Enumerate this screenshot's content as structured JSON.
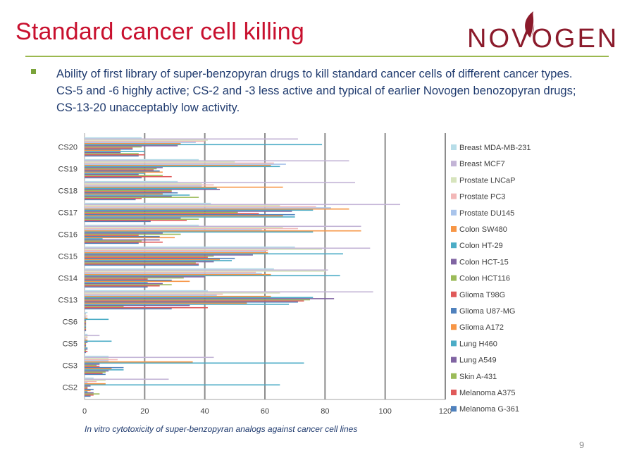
{
  "slide": {
    "title": "Standard cancer cell killing",
    "logo_text": "NOVOGEN",
    "bullet": "Ability of first library of super-benzopyran drugs to kill standard cancer cells of different cancer types. CS-5 and -6 highly active; CS-2 and -3 less active and typical of earlier Novogen benozopyran drugs; CS-13-20 unacceptably low activity.",
    "caption": "In vitro cytotoxicity of super-benzopyran analogs against cancer cell lines",
    "page_number": "9",
    "colors": {
      "title": "#c8102e",
      "rule": "#9bb84f",
      "text": "#1f3a6e",
      "logo": "#8b1a2b"
    }
  },
  "chart_data": {
    "type": "bar",
    "orientation": "horizontal",
    "categories": [
      "CS2",
      "CS3",
      "CS5",
      "CS6",
      "CS13",
      "CS14",
      "CS15",
      "CS16",
      "CS17",
      "CS18",
      "CS19",
      "CS20"
    ],
    "xlim": [
      0,
      120
    ],
    "xticks": [
      0,
      20,
      40,
      60,
      80,
      100,
      120
    ],
    "grid": true,
    "legend_position": "right",
    "series": [
      {
        "name": "Melanoma G-361",
        "color": "#4f81bd",
        "values": [
          2,
          7,
          0.5,
          0.5,
          29,
          21,
          38,
          18,
          22,
          17,
          19,
          18
        ]
      },
      {
        "name": "Melanoma A375",
        "color": "#e05a5a",
        "values": [
          3,
          6,
          1,
          0.5,
          41,
          25,
          38,
          26,
          34,
          19,
          29,
          20
        ]
      },
      {
        "name": "Skin A-431",
        "color": "#9bbb59",
        "values": [
          5,
          7,
          0.5,
          0.5,
          13,
          29,
          37,
          19,
          38,
          38,
          26,
          18
        ]
      },
      {
        "name": "Lung A549",
        "color": "#8064a2",
        "values": [
          3,
          8,
          1,
          0.5,
          35,
          26,
          43,
          25,
          32,
          29,
          18,
          12
        ]
      },
      {
        "name": "Lung H460",
        "color": "#4bacc6",
        "values": [
          1,
          13,
          1,
          0.5,
          68,
          21,
          49,
          6,
          70,
          35,
          20,
          20
        ]
      },
      {
        "name": "Glioma A172",
        "color": "#f79646",
        "values": [
          2,
          9,
          0.5,
          0.5,
          54,
          35,
          45,
          30,
          66,
          26,
          26,
          12
        ]
      },
      {
        "name": "Glioma U87-MG",
        "color": "#4f81bd",
        "values": [
          3,
          13,
          0.5,
          0.5,
          71,
          29,
          50,
          25,
          70,
          31,
          25,
          16
        ]
      },
      {
        "name": "Glioma T98G",
        "color": "#e05a5a",
        "values": [
          1,
          5,
          0.5,
          0.5,
          73,
          21,
          41,
          18,
          58,
          29,
          23,
          16
        ]
      },
      {
        "name": "Colon HCT116",
        "color": "#9bbb59",
        "values": [
          1,
          4,
          0.5,
          0.5,
          75,
          33,
          43,
          32,
          51,
          29,
          24,
          19
        ]
      },
      {
        "name": "Colon HCT-15",
        "color": "#8064a2",
        "values": [
          2,
          5,
          1,
          0.5,
          83,
          40,
          56,
          26,
          69,
          45,
          26,
          31
        ]
      },
      {
        "name": "Colon HT-29",
        "color": "#4bacc6",
        "values": [
          65,
          73,
          9,
          8,
          76,
          85,
          86,
          76,
          76,
          44,
          65,
          79
        ]
      },
      {
        "name": "Colon SW480",
        "color": "#f79646",
        "values": [
          7,
          36,
          1,
          1,
          62,
          62,
          61,
          92,
          88,
          66,
          62,
          32
        ]
      },
      {
        "name": "Prostate DU145",
        "color": "#a9c4eb",
        "values": [
          1,
          8,
          0.5,
          0.5,
          44,
          59,
          60,
          59,
          82,
          39,
          67,
          37
        ]
      },
      {
        "name": "Prostate PC3",
        "color": "#f2b7b7",
        "values": [
          4,
          11,
          1,
          1,
          46,
          57,
          61,
          71,
          77,
          43,
          63,
          40
        ]
      },
      {
        "name": "Prostate LNCaP",
        "color": "#d7e4bd",
        "values": [
          7,
          8,
          1,
          0.5,
          65,
          80,
          79,
          66,
          65,
          39,
          50,
          41
        ]
      },
      {
        "name": "Breast MCF7",
        "color": "#c3b4d6",
        "values": [
          28,
          43,
          5,
          0.5,
          96,
          81,
          95,
          92,
          105,
          90,
          88,
          71
        ]
      },
      {
        "name": "Breast MDA-MB-231",
        "color": "#b7dde8",
        "values": [
          3,
          8,
          1,
          1,
          41,
          63,
          70,
          38,
          42,
          31,
          38,
          19
        ]
      }
    ]
  }
}
